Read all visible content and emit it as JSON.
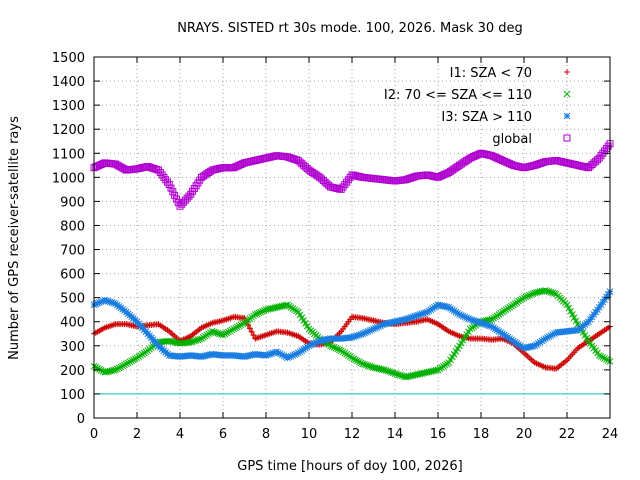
{
  "chart_data": {
    "type": "scatter",
    "title": "NRAYS. SISTED rt 30s mode. 100, 2026. Mask 30 deg",
    "xlabel": "GPS time [hours of doy 100, 2026]",
    "ylabel": "Number of GPS receiver-satellite rays",
    "xlim": [
      0,
      24
    ],
    "ylim": [
      0,
      1500
    ],
    "xticks": [
      "0",
      "2",
      "4",
      "6",
      "8",
      "10",
      "12",
      "14",
      "16",
      "18",
      "20",
      "22",
      "24"
    ],
    "yticks": [
      "0",
      "100",
      "200",
      "300",
      "400",
      "500",
      "600",
      "700",
      "800",
      "900",
      "1000",
      "1100",
      "1200",
      "1300",
      "1400",
      "1500"
    ],
    "grid": true,
    "legend_position": "top-right",
    "reference_line": {
      "y": 100,
      "color": "#00c8c8"
    },
    "series": [
      {
        "name": "I1: SZA < 70",
        "color": "#cc0000",
        "marker": "plus",
        "points": [
          [
            0,
            350
          ],
          [
            0.5,
            375
          ],
          [
            1,
            390
          ],
          [
            1.5,
            390
          ],
          [
            2,
            380
          ],
          [
            2.5,
            385
          ],
          [
            3,
            390
          ],
          [
            3.5,
            360
          ],
          [
            4,
            320
          ],
          [
            4.5,
            340
          ],
          [
            5,
            375
          ],
          [
            5.5,
            395
          ],
          [
            6,
            405
          ],
          [
            6.5,
            420
          ],
          [
            7,
            415
          ],
          [
            7.5,
            330
          ],
          [
            8,
            345
          ],
          [
            8.5,
            360
          ],
          [
            9,
            355
          ],
          [
            9.5,
            340
          ],
          [
            10,
            310
          ],
          [
            10.5,
            305
          ],
          [
            11,
            315
          ],
          [
            11.5,
            360
          ],
          [
            12,
            420
          ],
          [
            12.5,
            415
          ],
          [
            13,
            405
          ],
          [
            13.5,
            395
          ],
          [
            14,
            390
          ],
          [
            14.5,
            395
          ],
          [
            15,
            400
          ],
          [
            15.5,
            410
          ],
          [
            16,
            390
          ],
          [
            16.5,
            360
          ],
          [
            17,
            340
          ],
          [
            17.5,
            330
          ],
          [
            18,
            330
          ],
          [
            18.5,
            325
          ],
          [
            19,
            330
          ],
          [
            19.5,
            310
          ],
          [
            20,
            270
          ],
          [
            20.5,
            230
          ],
          [
            21,
            210
          ],
          [
            21.5,
            205
          ],
          [
            22,
            240
          ],
          [
            22.5,
            290
          ],
          [
            23,
            320
          ],
          [
            23.5,
            350
          ],
          [
            24,
            380
          ]
        ]
      },
      {
        "name": "I2: 70 <= SZA <= 110",
        "color": "#00b000",
        "marker": "cross",
        "points": [
          [
            0,
            215
          ],
          [
            0.5,
            190
          ],
          [
            1,
            200
          ],
          [
            1.5,
            225
          ],
          [
            2,
            250
          ],
          [
            2.5,
            280
          ],
          [
            3,
            315
          ],
          [
            3.5,
            320
          ],
          [
            4,
            310
          ],
          [
            4.5,
            315
          ],
          [
            5,
            330
          ],
          [
            5.5,
            360
          ],
          [
            6,
            345
          ],
          [
            6.5,
            370
          ],
          [
            7,
            395
          ],
          [
            7.5,
            430
          ],
          [
            8,
            450
          ],
          [
            8.5,
            460
          ],
          [
            9,
            470
          ],
          [
            9.5,
            440
          ],
          [
            10,
            370
          ],
          [
            10.5,
            330
          ],
          [
            11,
            300
          ],
          [
            11.5,
            280
          ],
          [
            12,
            250
          ],
          [
            12.5,
            225
          ],
          [
            13,
            210
          ],
          [
            13.5,
            200
          ],
          [
            14,
            185
          ],
          [
            14.5,
            170
          ],
          [
            15,
            180
          ],
          [
            15.5,
            190
          ],
          [
            16,
            200
          ],
          [
            16.5,
            230
          ],
          [
            17,
            300
          ],
          [
            17.5,
            370
          ],
          [
            18,
            400
          ],
          [
            18.5,
            410
          ],
          [
            19,
            440
          ],
          [
            19.5,
            470
          ],
          [
            20,
            500
          ],
          [
            20.5,
            520
          ],
          [
            21,
            530
          ],
          [
            21.5,
            515
          ],
          [
            22,
            470
          ],
          [
            22.5,
            390
          ],
          [
            23,
            320
          ],
          [
            23.5,
            260
          ],
          [
            24,
            235
          ]
        ]
      },
      {
        "name": "I3: SZA > 110",
        "color": "#1a7de0",
        "marker": "star",
        "points": [
          [
            0,
            470
          ],
          [
            0.5,
            490
          ],
          [
            1,
            475
          ],
          [
            1.5,
            440
          ],
          [
            2,
            400
          ],
          [
            2.5,
            350
          ],
          [
            3,
            300
          ],
          [
            3.5,
            260
          ],
          [
            4,
            255
          ],
          [
            4.5,
            260
          ],
          [
            5,
            255
          ],
          [
            5.5,
            265
          ],
          [
            6,
            260
          ],
          [
            6.5,
            260
          ],
          [
            7,
            255
          ],
          [
            7.5,
            265
          ],
          [
            8,
            260
          ],
          [
            8.5,
            275
          ],
          [
            9,
            250
          ],
          [
            9.5,
            270
          ],
          [
            10,
            300
          ],
          [
            10.5,
            320
          ],
          [
            11,
            330
          ],
          [
            11.5,
            330
          ],
          [
            12,
            335
          ],
          [
            12.5,
            350
          ],
          [
            13,
            370
          ],
          [
            13.5,
            390
          ],
          [
            14,
            400
          ],
          [
            14.5,
            410
          ],
          [
            15,
            425
          ],
          [
            15.5,
            440
          ],
          [
            16,
            470
          ],
          [
            16.5,
            460
          ],
          [
            17,
            430
          ],
          [
            17.5,
            410
          ],
          [
            18,
            395
          ],
          [
            18.5,
            380
          ],
          [
            19,
            350
          ],
          [
            19.5,
            320
          ],
          [
            20,
            290
          ],
          [
            20.5,
            300
          ],
          [
            21,
            330
          ],
          [
            21.5,
            355
          ],
          [
            22,
            360
          ],
          [
            22.5,
            365
          ],
          [
            23,
            400
          ],
          [
            23.5,
            460
          ],
          [
            24,
            525
          ]
        ]
      },
      {
        "name": "global",
        "color": "#b000d0",
        "marker": "square",
        "points": [
          [
            0,
            1040
          ],
          [
            0.5,
            1060
          ],
          [
            1,
            1055
          ],
          [
            1.5,
            1030
          ],
          [
            2,
            1035
          ],
          [
            2.5,
            1045
          ],
          [
            3,
            1030
          ],
          [
            3.5,
            970
          ],
          [
            4,
            880
          ],
          [
            4.5,
            930
          ],
          [
            5,
            1000
          ],
          [
            5.5,
            1030
          ],
          [
            6,
            1040
          ],
          [
            6.5,
            1040
          ],
          [
            7,
            1060
          ],
          [
            7.5,
            1070
          ],
          [
            8,
            1080
          ],
          [
            8.5,
            1090
          ],
          [
            9,
            1085
          ],
          [
            9.5,
            1070
          ],
          [
            10,
            1030
          ],
          [
            10.5,
            1000
          ],
          [
            11,
            960
          ],
          [
            11.5,
            950
          ],
          [
            12,
            1010
          ],
          [
            12.5,
            1000
          ],
          [
            13,
            995
          ],
          [
            13.5,
            990
          ],
          [
            14,
            985
          ],
          [
            14.5,
            990
          ],
          [
            15,
            1005
          ],
          [
            15.5,
            1010
          ],
          [
            16,
            1000
          ],
          [
            16.5,
            1020
          ],
          [
            17,
            1050
          ],
          [
            17.5,
            1080
          ],
          [
            18,
            1100
          ],
          [
            18.5,
            1090
          ],
          [
            19,
            1070
          ],
          [
            19.5,
            1050
          ],
          [
            20,
            1040
          ],
          [
            20.5,
            1050
          ],
          [
            21,
            1065
          ],
          [
            21.5,
            1070
          ],
          [
            22,
            1060
          ],
          [
            22.5,
            1050
          ],
          [
            23,
            1040
          ],
          [
            23.5,
            1080
          ],
          [
            24,
            1140
          ]
        ]
      }
    ]
  }
}
